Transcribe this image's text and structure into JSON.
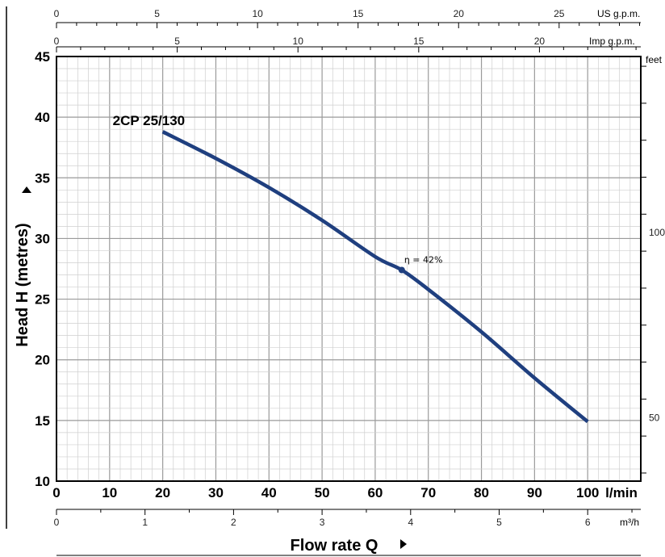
{
  "chart_data": {
    "type": "line",
    "xlabel": "Flow rate Q",
    "ylabel": "Head H (metres)",
    "xlim": [
      0,
      110
    ],
    "ylim": [
      10,
      45
    ],
    "x_unit": "l/min",
    "x_ticks": [
      "0",
      "10",
      "20",
      "30",
      "40",
      "50",
      "60",
      "70",
      "80",
      "90",
      "100"
    ],
    "y_ticks": [
      "10",
      "15",
      "20",
      "25",
      "30",
      "35",
      "40",
      "45"
    ],
    "grid": true,
    "series": [
      {
        "name": "2CP 25/130",
        "color": "#1f3f7f",
        "x": [
          20,
          30,
          40,
          50,
          60,
          65,
          70,
          80,
          90,
          100
        ],
        "y": [
          38.8,
          36.6,
          34.2,
          31.5,
          28.5,
          27.4,
          25.8,
          22.3,
          18.5,
          14.9
        ]
      }
    ],
    "efficiency_point": {
      "label": "η = 42%",
      "x": 65,
      "y": 27.4
    },
    "secondary_axes": {
      "us_gpm": {
        "label": "US g.p.m.",
        "ticks": [
          "0",
          "5",
          "10",
          "15",
          "20",
          "25"
        ]
      },
      "imp_gpm": {
        "label": "Imp g.p.m.",
        "ticks": [
          "0",
          "5",
          "10",
          "15",
          "20"
        ]
      },
      "m3h": {
        "label": "m³/h",
        "ticks": [
          "0",
          "1",
          "2",
          "3",
          "4",
          "5",
          "6"
        ]
      },
      "feet": {
        "label": "feet",
        "ticks": [
          "100",
          "50"
        ]
      }
    }
  }
}
